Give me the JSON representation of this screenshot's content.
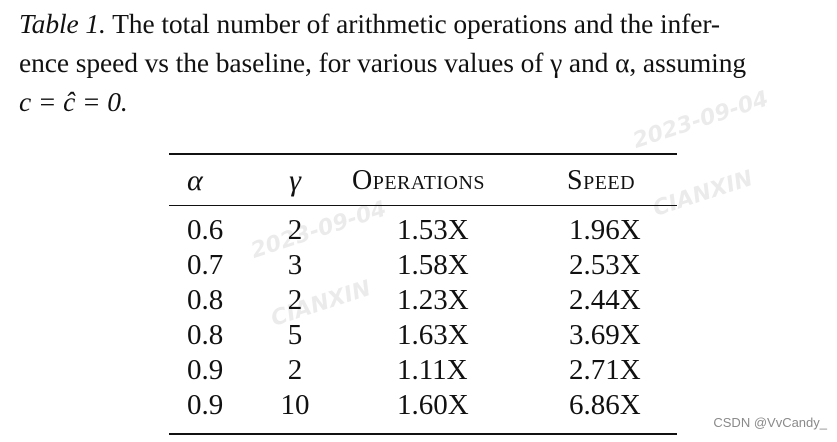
{
  "caption": {
    "label": "Table 1.",
    "line1": " The total number of arithmetic operations and the infer-",
    "line2": "ence speed vs the baseline, for various values of γ and α, assuming",
    "line3": "c = ĉ = 0."
  },
  "table": {
    "headers": {
      "alpha": "α",
      "gamma": "γ",
      "operations": "Operations",
      "speed": "Speed"
    },
    "rows": [
      {
        "alpha": "0.6",
        "gamma": "2",
        "operations": "1.53X",
        "speed": "1.96X"
      },
      {
        "alpha": "0.7",
        "gamma": "3",
        "operations": "1.58X",
        "speed": "2.53X"
      },
      {
        "alpha": "0.8",
        "gamma": "2",
        "operations": "1.23X",
        "speed": "2.44X"
      },
      {
        "alpha": "0.8",
        "gamma": "5",
        "operations": "1.63X",
        "speed": "3.69X"
      },
      {
        "alpha": "0.9",
        "gamma": "2",
        "operations": "1.11X",
        "speed": "2.71X"
      },
      {
        "alpha": "0.9",
        "gamma": "10",
        "operations": "1.60X",
        "speed": "6.86X"
      }
    ]
  },
  "watermarks": {
    "date": "2023-09-04",
    "brand": "CIANXIN"
  },
  "credit": "CSDN @VvCandy_"
}
